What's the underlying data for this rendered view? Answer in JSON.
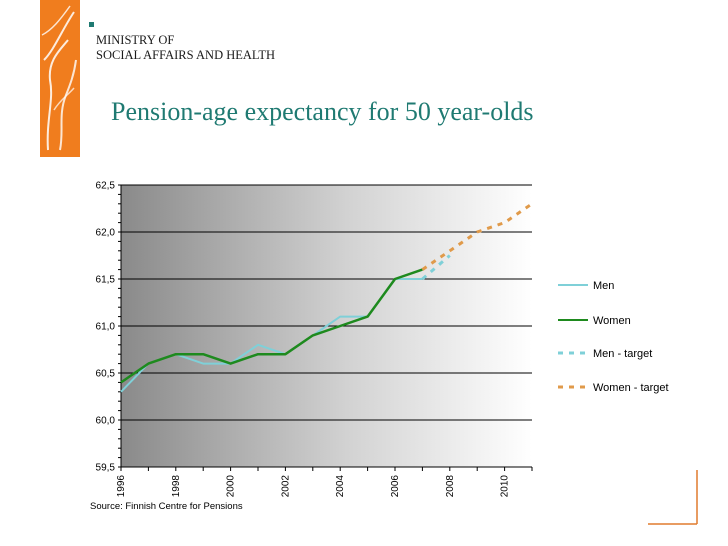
{
  "header": {
    "ministry_line1": "MINISTRY OF",
    "ministry_line2": "SOCIAL AFFAIRS AND HEALTH",
    "title": "Pension-age expectancy for 50 year-olds"
  },
  "source": "Source: Finnish Centre for Pensions",
  "colors": {
    "brand_orange": "#f07d1e",
    "title_teal": "#1f7a72",
    "men": "#7fd0d8",
    "women": "#1e8a1e",
    "men_target": "#7fd0d8",
    "women_target": "#e09a4a"
  },
  "chart_data": {
    "type": "line",
    "title": "",
    "xlabel": "",
    "ylabel": "",
    "xlim": [
      1996,
      2011
    ],
    "ylim": [
      59.5,
      62.5
    ],
    "x_ticks": [
      "1996",
      "1998",
      "2000",
      "2002",
      "2004",
      "2006",
      "2008",
      "2010"
    ],
    "x_tick_values": [
      1996,
      1998,
      2000,
      2002,
      2004,
      2006,
      2008,
      2010
    ],
    "y_ticks": [
      "59,5",
      "60,0",
      "60,5",
      "61,0",
      "61,5",
      "62,0",
      "62,5"
    ],
    "y_tick_values": [
      59.5,
      60.0,
      60.5,
      61.0,
      61.5,
      62.0,
      62.5
    ],
    "grid": "horizontal",
    "legend_position": "right",
    "series": [
      {
        "name": "Men",
        "style": "solid",
        "color": "#7fd0d8",
        "x": [
          1996,
          1997,
          1998,
          1999,
          2000,
          2001,
          2002,
          2003,
          2004,
          2005,
          2006,
          2007
        ],
        "y": [
          60.3,
          60.6,
          60.7,
          60.6,
          60.6,
          60.8,
          60.7,
          60.9,
          61.1,
          61.1,
          61.5,
          61.5
        ]
      },
      {
        "name": "Women",
        "style": "solid",
        "color": "#1e8a1e",
        "x": [
          1996,
          1997,
          1998,
          1999,
          2000,
          2001,
          2002,
          2003,
          2004,
          2005,
          2006,
          2007
        ],
        "y": [
          60.4,
          60.6,
          60.7,
          60.7,
          60.6,
          60.7,
          60.7,
          60.9,
          61.0,
          61.1,
          61.5,
          61.6
        ]
      },
      {
        "name": "Men - target",
        "style": "dashed",
        "color": "#7fd0d8",
        "x": [
          2007,
          2008
        ],
        "y": [
          61.5,
          61.75
        ]
      },
      {
        "name": "Women - target",
        "style": "dashed",
        "color": "#e09a4a",
        "x": [
          2007,
          2008,
          2009,
          2010,
          2011
        ],
        "y": [
          61.6,
          61.8,
          62.0,
          62.1,
          62.3
        ]
      }
    ]
  }
}
